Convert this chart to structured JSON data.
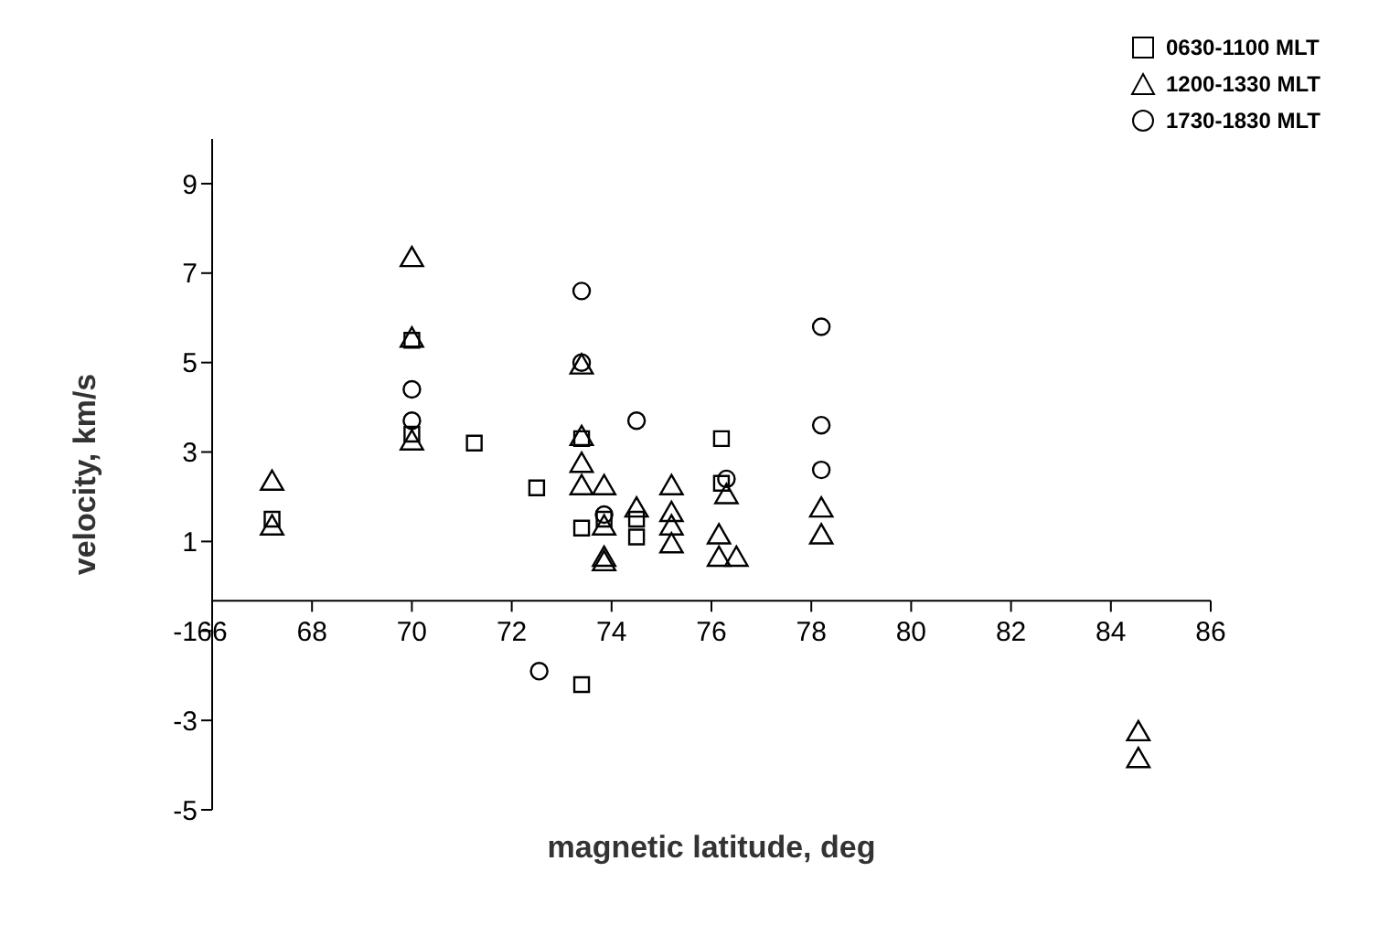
{
  "chart_data": {
    "type": "scatter",
    "xlabel": "magnetic latitude, deg",
    "ylabel": "velocity, km/s",
    "xlim": [
      66,
      86
    ],
    "xticks": [
      66,
      68,
      70,
      72,
      74,
      76,
      78,
      80,
      82,
      84,
      86
    ],
    "ylim": [
      -5,
      10
    ],
    "yticks": [
      -5,
      -3,
      -1,
      1,
      3,
      5,
      7,
      9
    ],
    "grid": false,
    "legend": "top right",
    "series": [
      {
        "name": "0630-1100 MLT",
        "color": "#000000",
        "marker": "square",
        "x": [
          67.2,
          70,
          70,
          71.25,
          72.5,
          73.4,
          73.4,
          73.4,
          73.85,
          74.5,
          74.5,
          76.2,
          76.2
        ],
        "values": [
          1.5,
          5.5,
          3.4,
          3.2,
          2.2,
          3.3,
          1.3,
          -2.2,
          1.5,
          1.1,
          1.5,
          3.3,
          2.3
        ]
      },
      {
        "name": "1200-1330 MLT",
        "color": "#000000",
        "marker": "triangle",
        "x": [
          67.2,
          67.2,
          70,
          70,
          70,
          73.4,
          73.4,
          73.4,
          73.4,
          73.85,
          73.85,
          73.85,
          73.85,
          74.5,
          75.2,
          75.2,
          75.2,
          75.2,
          76.15,
          76.15,
          76.3,
          76.5,
          78.2,
          78.2,
          84.55,
          84.55
        ],
        "values": [
          2.3,
          1.3,
          7.3,
          5.5,
          3.2,
          4.9,
          3.3,
          2.7,
          2.2,
          2.2,
          1.3,
          0.6,
          0.5,
          1.7,
          2.2,
          1.6,
          1.3,
          0.9,
          1.1,
          0.6,
          2.0,
          0.6,
          1.7,
          1.1,
          -3.3,
          -3.9
        ]
      },
      {
        "name": "1730-1830 MLT",
        "color": "#000000",
        "marker": "circle",
        "x": [
          70,
          70,
          72.55,
          73.4,
          73.4,
          73.85,
          74.5,
          76.3,
          78.2,
          78.2,
          78.2
        ],
        "values": [
          4.4,
          3.7,
          -1.9,
          6.6,
          5.0,
          1.6,
          3.7,
          2.4,
          5.8,
          3.6,
          2.6
        ]
      }
    ]
  }
}
